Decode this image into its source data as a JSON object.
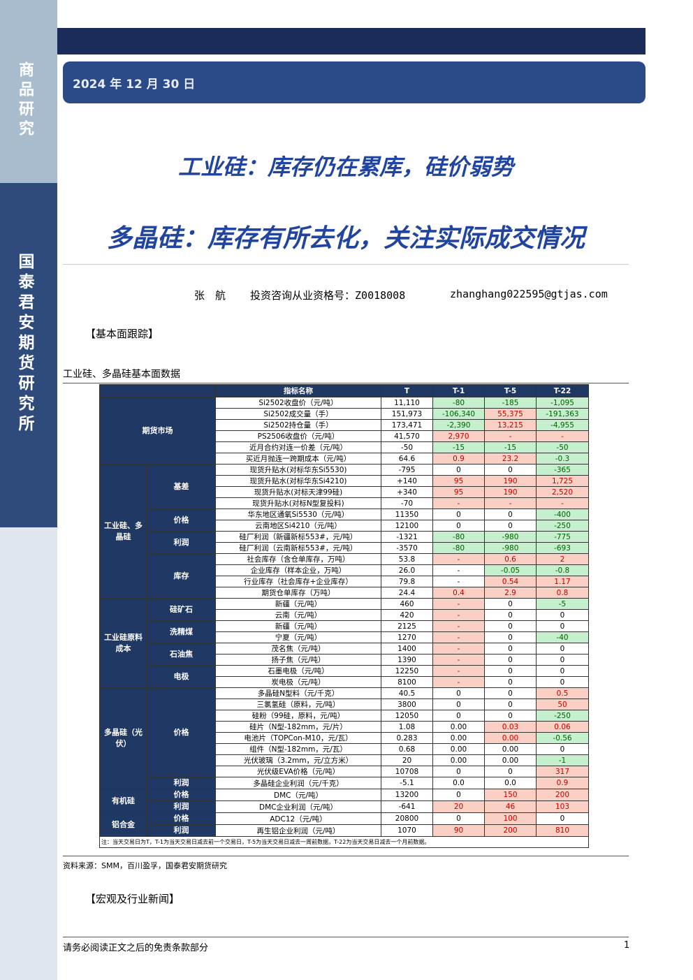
{
  "sidebar": {
    "top": "商品研究",
    "bottom": "国泰君安期货研究所"
  },
  "header": {
    "date": "2024 年 12 月 30 日",
    "title": "工业硅：库存仍在累库，硅价弱势",
    "subtitle": "多晶硅：库存有所去化，关注实际成交情况",
    "author": "张　航",
    "license": "投资咨询从业资格号：Z0018008",
    "email": "zhanghang022595@gtjas.com"
  },
  "section1": "【基本面跟踪】",
  "table": {
    "caption": "工业硅、多晶硅基本面数据",
    "header": [
      "指标名称",
      "T",
      "T-1",
      "T-5",
      "T-22"
    ],
    "sections": [
      {
        "label": "期货市场",
        "subsections": [
          {
            "label": null,
            "rows": [
              {
                "cells": [
                  "Si2502收盘价（元/吨）",
                  "11,110",
                  "-80",
                  "-185",
                  "-1,095"
                ],
                "tones": [
                  "g",
                  "g",
                  "g"
                ]
              },
              {
                "cells": [
                  "Si2502成交量（手）",
                  "151,973",
                  "-106,340",
                  "55,375",
                  "-191,363"
                ],
                "tones": [
                  "g",
                  "r",
                  "g"
                ]
              },
              {
                "cells": [
                  "Si2502持仓量（手）",
                  "173,471",
                  "-2,390",
                  "13,215",
                  "-4,955"
                ],
                "tones": [
                  "g",
                  "r",
                  "g"
                ]
              },
              {
                "cells": [
                  "PS2506收盘价（元/吨）",
                  "41,570",
                  "2,970",
                  "-",
                  "-"
                ],
                "tones": [
                  "r",
                  "r",
                  "r"
                ]
              },
              {
                "cells": [
                  "近月合约对连一价差（元/吨）",
                  "-50",
                  "-15",
                  "-15",
                  "-50"
                ],
                "tones": [
                  "g",
                  "g",
                  "g"
                ]
              },
              {
                "cells": [
                  "买近月抛连一跨期成本（元/吨）",
                  "64.6",
                  "0.9",
                  "23.2",
                  "-0.3"
                ],
                "tones": [
                  "r",
                  "r",
                  "g"
                ]
              }
            ]
          }
        ]
      },
      {
        "label": "工业硅、多晶硅",
        "subsections": [
          {
            "label": "基差",
            "rows": [
              {
                "cells": [
                  "现货升贴水(对标华东Si5530)",
                  "-795",
                  "0",
                  "0",
                  "-365"
                ],
                "tones": [
                  null,
                  null,
                  "g"
                ]
              },
              {
                "cells": [
                  "现货升贴水(对标华东Si4210)",
                  "+140",
                  "95",
                  "190",
                  "1,725"
                ],
                "tones": [
                  "r",
                  "r",
                  "r"
                ]
              },
              {
                "cells": [
                  "现货升贴水(对标天津99硅)",
                  "+340",
                  "95",
                  "190",
                  "2,520"
                ],
                "tones": [
                  "r",
                  "r",
                  "r"
                ]
              },
              {
                "cells": [
                  "现货升贴水(对标N型复投料)",
                  "-70",
                  "-",
                  "-",
                  "-"
                ],
                "tones": [
                  "r",
                  "r",
                  "r"
                ]
              }
            ]
          },
          {
            "label": "价格",
            "rows": [
              {
                "cells": [
                  "华东地区通氧Si5530（元/吨）",
                  "11350",
                  "0",
                  "0",
                  "-400"
                ],
                "tones": [
                  null,
                  null,
                  "g"
                ]
              },
              {
                "cells": [
                  "云南地区Si4210（元/吨）",
                  "12100",
                  "0",
                  "0",
                  "-250"
                ],
                "tones": [
                  null,
                  null,
                  "g"
                ]
              }
            ]
          },
          {
            "label": "利润",
            "rows": [
              {
                "cells": [
                  "硅厂利润（新疆新标553#，元/吨）",
                  "-1321",
                  "-80",
                  "-980",
                  "-775"
                ],
                "tones": [
                  "g",
                  "g",
                  "g"
                ]
              },
              {
                "cells": [
                  "硅厂利润（云南新标553#，元/吨）",
                  "-3570",
                  "-80",
                  "-980",
                  "-693"
                ],
                "tones": [
                  "g",
                  "g",
                  "g"
                ]
              }
            ]
          },
          {
            "label": "库存",
            "rows": [
              {
                "cells": [
                  "社会库存（含仓单库存，万吨）",
                  "53.8",
                  "-",
                  "0.6",
                  "2"
                ],
                "tones": [
                  "r",
                  "r",
                  "r"
                ]
              },
              {
                "cells": [
                  "企业库存（样本企业，万吨）",
                  "26.0",
                  "-",
                  "-0.05",
                  "-0.8"
                ],
                "tones": [
                  null,
                  "g",
                  "g"
                ]
              },
              {
                "cells": [
                  "行业库存（社会库存+企业库存）",
                  "79.8",
                  "-",
                  "0.54",
                  "1.17"
                ],
                "tones": [
                  null,
                  "r",
                  "r"
                ]
              },
              {
                "cells": [
                  "期货仓单库存（万吨）",
                  "24.4",
                  "0.4",
                  "2.9",
                  "0.8"
                ],
                "tones": [
                  "r",
                  "r",
                  "r"
                ]
              }
            ]
          }
        ]
      },
      {
        "label": "工业硅原料成本",
        "subsections": [
          {
            "label": "硅矿石",
            "rows": [
              {
                "cells": [
                  "新疆（元/吨）",
                  "460",
                  "-",
                  "0",
                  "-5"
                ],
                "tones": [
                  "r",
                  null,
                  "g"
                ]
              },
              {
                "cells": [
                  "云南（元/吨）",
                  "420",
                  "-",
                  "0",
                  "0"
                ],
                "tones": [
                  "r",
                  null,
                  null
                ]
              }
            ]
          },
          {
            "label": "洗精煤",
            "rows": [
              {
                "cells": [
                  "新疆（元/吨）",
                  "2125",
                  "-",
                  "0",
                  "0"
                ],
                "tones": [
                  "r",
                  null,
                  null
                ]
              },
              {
                "cells": [
                  "宁夏（元/吨）",
                  "1270",
                  "-",
                  "0",
                  "-40"
                ],
                "tones": [
                  "r",
                  null,
                  "g"
                ]
              }
            ]
          },
          {
            "label": "石油焦",
            "rows": [
              {
                "cells": [
                  "茂名焦（元/吨）",
                  "1400",
                  "-",
                  "0",
                  "0"
                ],
                "tones": [
                  "r",
                  null,
                  null
                ]
              },
              {
                "cells": [
                  "扬子焦（元/吨）",
                  "1390",
                  "-",
                  "0",
                  "0"
                ],
                "tones": [
                  "r",
                  null,
                  null
                ]
              }
            ]
          },
          {
            "label": "电极",
            "rows": [
              {
                "cells": [
                  "石墨电极（元/吨）",
                  "12250",
                  "-",
                  "0",
                  "0"
                ],
                "tones": [
                  "r",
                  null,
                  null
                ]
              },
              {
                "cells": [
                  "炭电极（元/吨）",
                  "8100",
                  "-",
                  "0",
                  "0"
                ],
                "tones": [
                  "r",
                  null,
                  null
                ]
              }
            ]
          }
        ]
      },
      {
        "label": "多晶硅（光伏）",
        "subsections": [
          {
            "label": "价格",
            "rows": [
              {
                "cells": [
                  "多晶硅N型料（元/千克）",
                  "40.5",
                  "0",
                  "0",
                  "0.5"
                ],
                "tones": [
                  null,
                  null,
                  "r"
                ]
              },
              {
                "cells": [
                  "三氯氢硅（原料，元/吨）",
                  "3800",
                  "0",
                  "0",
                  "50"
                ],
                "tones": [
                  null,
                  null,
                  "r"
                ]
              },
              {
                "cells": [
                  "硅粉（99硅，原料，元/吨）",
                  "12050",
                  "0",
                  "0",
                  "-250"
                ],
                "tones": [
                  null,
                  null,
                  "g"
                ]
              },
              {
                "cells": [
                  "硅片（N型-182mm，元/片）",
                  "1.08",
                  "0.00",
                  "0.03",
                  "0.06"
                ],
                "tones": [
                  null,
                  "r",
                  "r"
                ]
              },
              {
                "cells": [
                  "电池片（TOPCon-M10，元/瓦）",
                  "0.283",
                  "0.00",
                  "0.00",
                  "-0.56"
                ],
                "tones": [
                  null,
                  "r",
                  "g"
                ]
              },
              {
                "cells": [
                  "组件（N型-182mm，元/瓦）",
                  "0.68",
                  "0.00",
                  "0.00",
                  "0"
                ],
                "tones": [
                  null,
                  null,
                  null
                ]
              },
              {
                "cells": [
                  "光伏玻璃（3.2mm，元/立方米）",
                  "20",
                  "0.00",
                  "0.00",
                  "-1"
                ],
                "tones": [
                  null,
                  null,
                  "g"
                ]
              },
              {
                "cells": [
                  "光伏级EVA价格（元/吨）",
                  "10708",
                  "0",
                  "0",
                  "317"
                ],
                "tones": [
                  null,
                  null,
                  "r"
                ]
              }
            ]
          },
          {
            "label": "利润",
            "rows": [
              {
                "cells": [
                  "多晶硅企业利润（元/千克）",
                  "-5.1",
                  "0.0",
                  "0.0",
                  "0.9"
                ],
                "tones": [
                  null,
                  null,
                  "r"
                ]
              }
            ]
          }
        ]
      },
      {
        "label": "有机硅",
        "subsections": [
          {
            "label": "价格",
            "rows": [
              {
                "cells": [
                  "DMC（元/吨）",
                  "13200",
                  "0",
                  "150",
                  "200"
                ],
                "tones": [
                  null,
                  "r",
                  "r"
                ]
              }
            ]
          },
          {
            "label": "利润",
            "rows": [
              {
                "cells": [
                  "DMC企业利润（元/吨）",
                  "-641",
                  "20",
                  "46",
                  "103"
                ],
                "tones": [
                  "r",
                  "r",
                  "r"
                ]
              }
            ]
          }
        ]
      },
      {
        "label": "铝合金",
        "subsections": [
          {
            "label": "价格",
            "rows": [
              {
                "cells": [
                  "ADC12（元/吨）",
                  "20800",
                  "0",
                  "100",
                  "0"
                ],
                "tones": [
                  null,
                  "r",
                  null
                ]
              }
            ]
          },
          {
            "label": "利润",
            "rows": [
              {
                "cells": [
                  "再生铝企业利润（元/吨）",
                  "1070",
                  "90",
                  "200",
                  "810"
                ],
                "tones": [
                  "r",
                  "r",
                  "r"
                ]
              }
            ]
          }
        ]
      }
    ],
    "note": "注：当天交易日为T，T-1为当天交易日减去前一个交易日，T-5为当天交易日减去一周前数据，T-22为当天交易日减去一个月前数据。"
  },
  "source": "资料来源：SMM，百川盈孚，国泰君安期货研究",
  "section2": "【宏观及行业新闻】",
  "footer": {
    "disclaimer": "请务必阅读正文之后的免责条款部分",
    "page": "1"
  }
}
